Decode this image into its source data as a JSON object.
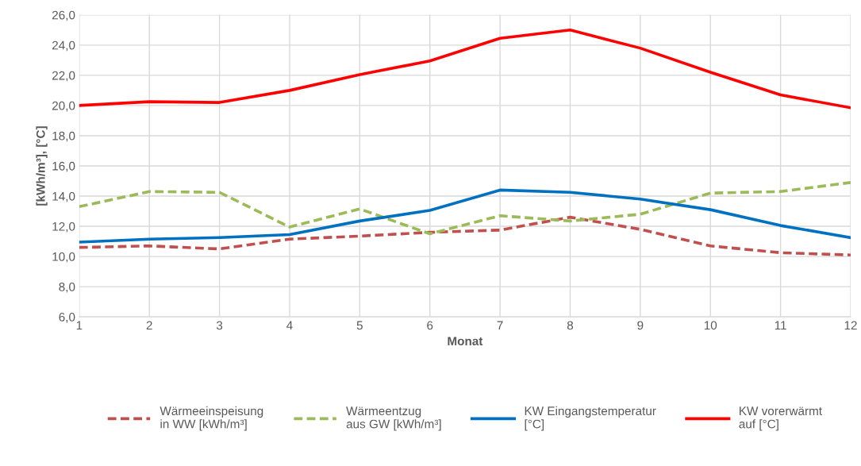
{
  "chart_data": {
    "type": "line",
    "xlabel": "Monat",
    "ylabel": "[kWh/m³], [°C]",
    "x": [
      1,
      2,
      3,
      4,
      5,
      6,
      7,
      8,
      9,
      10,
      11,
      12
    ],
    "xlim": [
      1,
      12
    ],
    "xticks": [
      1,
      2,
      3,
      4,
      5,
      6,
      7,
      8,
      9,
      10,
      11,
      12
    ],
    "ylim": [
      6,
      26
    ],
    "yticks": [
      {
        "value": 6,
        "label": "6,0"
      },
      {
        "value": 8,
        "label": "8,0"
      },
      {
        "value": 10,
        "label": "10,0"
      },
      {
        "value": 12,
        "label": "12,0"
      },
      {
        "value": 14,
        "label": "14,0"
      },
      {
        "value": 16,
        "label": "16,0"
      },
      {
        "value": 18,
        "label": "18,0"
      },
      {
        "value": 20,
        "label": "20,0"
      },
      {
        "value": 22,
        "label": "22,0"
      },
      {
        "value": 24,
        "label": "24,0"
      },
      {
        "value": 26,
        "label": "26,0"
      }
    ],
    "grid": true,
    "legend": "bottom",
    "marker": "none",
    "series": [
      {
        "name": "Wärmeeinspeisung\nin WW [kWh/m³]",
        "color": "#c0504d",
        "line_style": "dashed",
        "values": [
          10.6,
          10.7,
          10.5,
          11.15,
          11.35,
          11.6,
          11.75,
          12.6,
          11.8,
          10.7,
          10.25,
          10.1
        ]
      },
      {
        "name": "Wärmeentzug\naus GW [kWh/m³]",
        "color": "#9bbb59",
        "line_style": "dashed",
        "values": [
          13.3,
          14.3,
          14.25,
          11.95,
          13.15,
          11.5,
          12.7,
          12.35,
          12.8,
          14.2,
          14.3,
          14.9
        ]
      },
      {
        "name": "KW Eingangstemperatur\n[°C]",
        "color": "#0070c0",
        "line_style": "solid",
        "values": [
          10.95,
          11.15,
          11.25,
          11.45,
          12.35,
          13.05,
          14.4,
          14.25,
          13.8,
          13.1,
          12.05,
          11.25
        ]
      },
      {
        "name": "KW vorerwärmt\nauf [°C]",
        "color": "#ff0000",
        "line_style": "solid",
        "values": [
          20.0,
          20.25,
          20.2,
          21.0,
          22.05,
          22.95,
          24.45,
          25.0,
          23.8,
          22.2,
          20.7,
          19.85
        ]
      }
    ]
  }
}
